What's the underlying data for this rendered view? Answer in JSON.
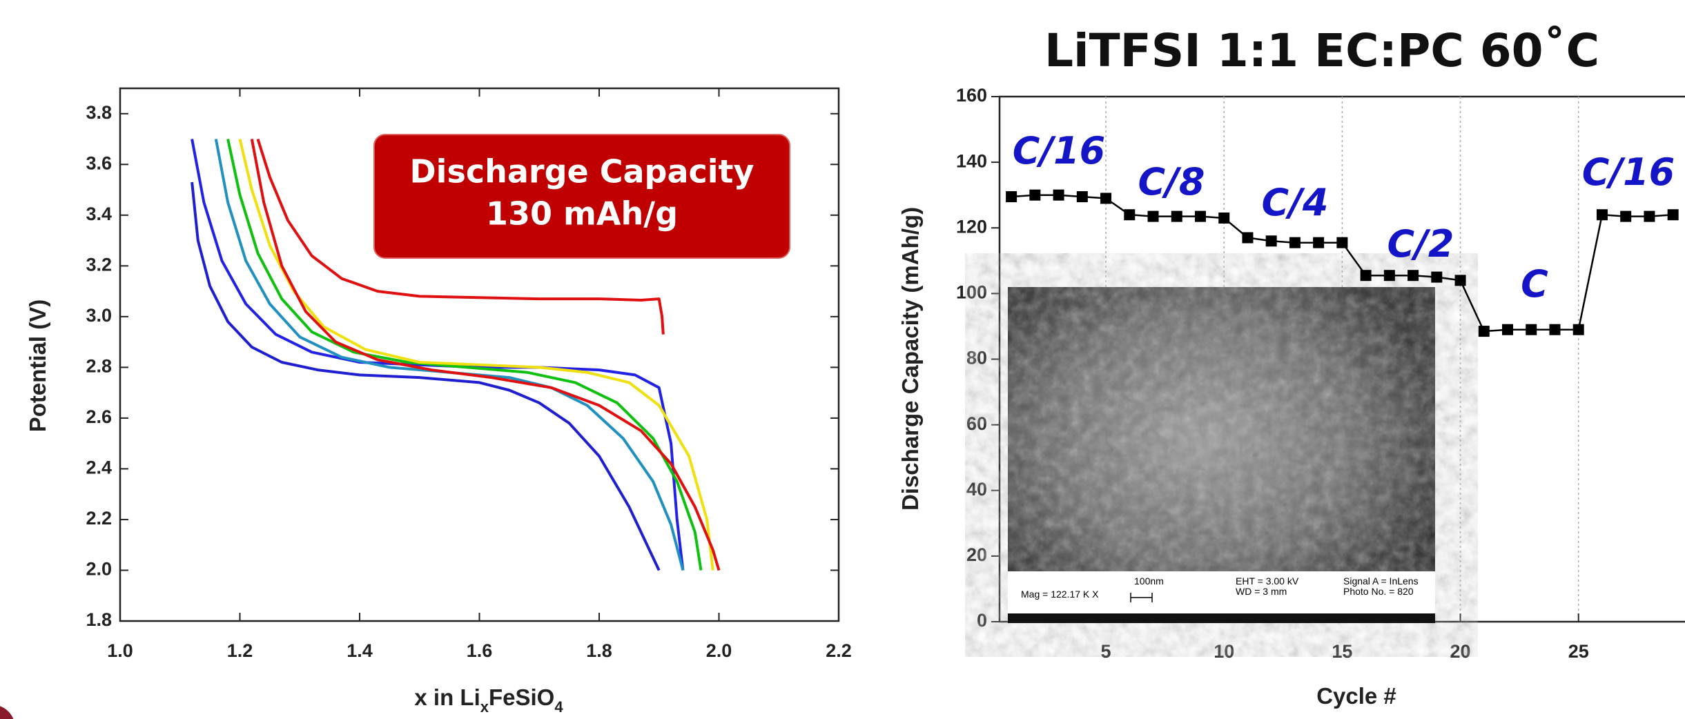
{
  "chart_data": [
    {
      "type": "line",
      "annotation": [
        "Discharge Capacity",
        "130 mAh/g"
      ],
      "xlabel": [
        "x in Li",
        "x",
        "FeSiO",
        "4"
      ],
      "ylabel": "Potential (V)",
      "xlim": [
        1.0,
        2.2
      ],
      "ylim": [
        1.8,
        3.9
      ],
      "xticks": [
        {
          "value": 1,
          "label": "1.0"
        },
        1.2,
        1.4,
        1.6,
        1.8,
        {
          "value": 2,
          "label": "2.0"
        },
        2.2
      ],
      "yticks": [
        1.8,
        {
          "value": 2,
          "label": "2.0"
        },
        2.2,
        2.4,
        2.6,
        2.8,
        {
          "value": 3,
          "label": "3.0"
        },
        3.2,
        3.4,
        3.6,
        3.8
      ],
      "series": [
        {
          "color": "#1f1fd0",
          "x": [
            1.12,
            1.13,
            1.15,
            1.18,
            1.22,
            1.27,
            1.33,
            1.4,
            1.5,
            1.6,
            1.65,
            1.7,
            1.75,
            1.8,
            1.85,
            1.9
          ],
          "values": [
            3.53,
            3.3,
            3.12,
            2.98,
            2.88,
            2.82,
            2.79,
            2.77,
            2.76,
            2.74,
            2.71,
            2.66,
            2.58,
            2.45,
            2.25,
            2.0
          ]
        },
        {
          "color": "#2222e6",
          "x": [
            1.12,
            1.14,
            1.17,
            1.21,
            1.26,
            1.32,
            1.4,
            1.5,
            1.6,
            1.7,
            1.8,
            1.86,
            1.9,
            1.92,
            1.93,
            1.94
          ],
          "values": [
            3.7,
            3.45,
            3.22,
            3.05,
            2.93,
            2.86,
            2.82,
            2.81,
            2.8,
            2.8,
            2.79,
            2.77,
            2.72,
            2.5,
            2.2,
            2.0
          ]
        },
        {
          "color": "#2090c0",
          "x": [
            1.16,
            1.18,
            1.21,
            1.25,
            1.3,
            1.37,
            1.45,
            1.55,
            1.65,
            1.72,
            1.78,
            1.84,
            1.89,
            1.92,
            1.94
          ],
          "values": [
            3.7,
            3.45,
            3.22,
            3.05,
            2.92,
            2.84,
            2.8,
            2.78,
            2.76,
            2.72,
            2.65,
            2.52,
            2.35,
            2.18,
            2.0
          ]
        },
        {
          "color": "#10c010",
          "x": [
            1.18,
            1.2,
            1.23,
            1.27,
            1.32,
            1.39,
            1.48,
            1.58,
            1.68,
            1.76,
            1.83,
            1.89,
            1.93,
            1.96,
            1.97
          ],
          "values": [
            3.7,
            3.48,
            3.25,
            3.07,
            2.94,
            2.86,
            2.82,
            2.8,
            2.78,
            2.74,
            2.66,
            2.52,
            2.35,
            2.15,
            2.0
          ]
        },
        {
          "color": "#f0e010",
          "x": [
            1.2,
            1.22,
            1.25,
            1.29,
            1.34,
            1.41,
            1.5,
            1.6,
            1.7,
            1.78,
            1.85,
            1.9,
            1.95,
            1.98,
            1.99
          ],
          "values": [
            3.7,
            3.5,
            3.28,
            3.1,
            2.96,
            2.87,
            2.82,
            2.81,
            2.8,
            2.78,
            2.74,
            2.65,
            2.45,
            2.2,
            2.0
          ]
        },
        {
          "color": "#e01010",
          "x": [
            1.22,
            1.24,
            1.27,
            1.31,
            1.36,
            1.43,
            1.52,
            1.62,
            1.72,
            1.8,
            1.87,
            1.92,
            1.96,
            1.99,
            2.0
          ],
          "values": [
            3.7,
            3.45,
            3.2,
            3.02,
            2.9,
            2.83,
            2.79,
            2.76,
            2.72,
            2.65,
            2.55,
            2.42,
            2.25,
            2.08,
            2.0
          ]
        },
        {
          "color": "#e01010",
          "x": [
            1.23,
            1.25,
            1.28,
            1.32,
            1.37,
            1.43,
            1.5,
            1.6,
            1.7,
            1.8,
            1.87,
            1.9,
            1.905,
            1.907
          ],
          "values": [
            3.7,
            3.55,
            3.38,
            3.24,
            3.15,
            3.1,
            3.08,
            3.075,
            3.07,
            3.07,
            3.065,
            3.07,
            3.0,
            2.93
          ]
        }
      ]
    },
    {
      "type": "line",
      "title": "LiTFSI 1:1 EC:PC 60˚C",
      "xlabel": "Cycle #",
      "ylabel": "Discharge Capacity (mAh/g)",
      "xlim": [
        0.5,
        30.5
      ],
      "ylim": [
        0,
        160
      ],
      "xticks": [
        5,
        10,
        15,
        20,
        25
      ],
      "yticks": [
        0,
        20,
        40,
        60,
        80,
        100,
        120,
        140,
        160
      ],
      "grid": true,
      "annotations": [
        "C/16",
        "C/8",
        "C/4",
        "C/2",
        "C",
        "C/16"
      ],
      "inset_labels": [
        "Mag = 122.17 K X",
        "100nm",
        "EHT =  3.00 kV",
        "WD =    3 mm",
        "Signal A = InLens",
        "Photo No. = 820"
      ],
      "series": [
        {
          "color": "#000000",
          "x": [
            1,
            2,
            3,
            4,
            5,
            6,
            7,
            8,
            9,
            10,
            11,
            12,
            13,
            14,
            15,
            16,
            17,
            18,
            19,
            20,
            21,
            22,
            23,
            24,
            25,
            26,
            27,
            28,
            29
          ],
          "values": [
            129.5,
            130,
            130,
            129.5,
            129,
            124,
            123.5,
            123.5,
            123.5,
            123,
            117,
            116,
            115.5,
            115.5,
            115.5,
            105.5,
            105.5,
            105.5,
            105,
            104,
            88.5,
            89,
            89,
            89,
            89,
            124,
            123.5,
            123.5,
            124
          ]
        }
      ]
    }
  ]
}
